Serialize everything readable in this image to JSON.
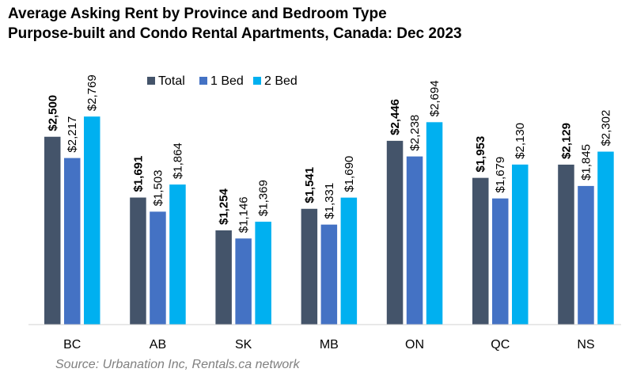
{
  "chart_data": {
    "type": "bar",
    "title": "Average Asking Rent by Province and Bedroom Type",
    "subtitle": "Purpose-built and Condo Rental Apartments, Canada: Dec 2023",
    "categories": [
      "BC",
      "AB",
      "SK",
      "MB",
      "ON",
      "QC",
      "NS"
    ],
    "series": [
      {
        "name": "Total",
        "color": "#44546a",
        "values": [
          2500,
          1691,
          1254,
          1541,
          2446,
          1953,
          2129
        ],
        "labels": [
          "$2,500",
          "$1,691",
          "$1,254",
          "$1,541",
          "$2,446",
          "$1,953",
          "$2,129"
        ],
        "label_bold": true
      },
      {
        "name": "1 Bed",
        "color": "#4472c4",
        "values": [
          2217,
          1503,
          1146,
          1331,
          2238,
          1679,
          1845
        ],
        "labels": [
          "$2,217",
          "$1,503",
          "$1,146",
          "$1,331",
          "$2,238",
          "$1,679",
          "$1,845"
        ],
        "label_bold": false
      },
      {
        "name": "2 Bed",
        "color": "#00b0f0",
        "values": [
          2769,
          1864,
          1369,
          1690,
          2694,
          2130,
          2302
        ],
        "labels": [
          "$2,769",
          "$1,864",
          "$1,369",
          "$1,690",
          "$2,694",
          "$2,130",
          "$2,302"
        ],
        "label_bold": false
      }
    ],
    "ylim": [
      0,
      3000
    ],
    "grid": false,
    "legend_position": "top-center",
    "source": "Source: Urbanation Inc, Rentals.ca network"
  }
}
